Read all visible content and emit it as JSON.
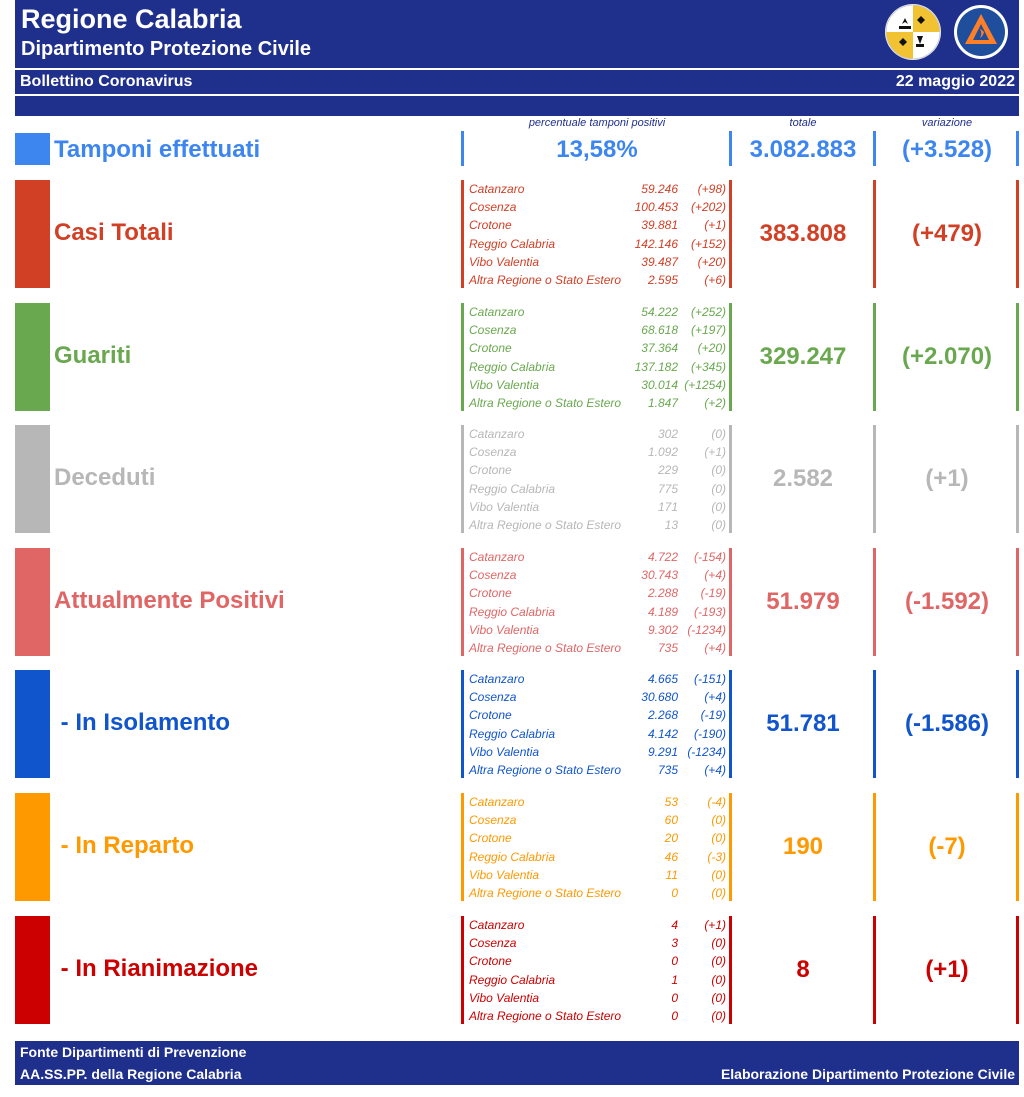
{
  "header": {
    "title": "Regione Calabria",
    "subtitle": "Dipartimento Protezione Civile",
    "bulletin": "Bollettino Coronavirus",
    "date": "22 maggio 2022",
    "logo_left": "regione-calabria-crest",
    "logo_right": "protezione-civile-regione-calabria-logo"
  },
  "columns": {
    "percent": "percentuale tamponi positivi",
    "total": "totale",
    "variation": "variazione"
  },
  "tamponi": {
    "label": "Tamponi effettuati",
    "percent": "13,58%",
    "total": "3.082.883",
    "variation": "(+3.528)",
    "color": "#3d86f0"
  },
  "sections": [
    {
      "id": "casi-totali",
      "label": "Casi Totali",
      "color": "#d13f25",
      "total": "383.808",
      "variation": "(+479)",
      "rows": [
        {
          "name": "Catanzaro",
          "value": "59.246",
          "delta": "(+98)"
        },
        {
          "name": "Cosenza",
          "value": "100.453",
          "delta": "(+202)"
        },
        {
          "name": "Crotone",
          "value": "39.881",
          "delta": "(+1)"
        },
        {
          "name": "Reggio Calabria",
          "value": "142.146",
          "delta": "(+152)"
        },
        {
          "name": "Vibo Valentia",
          "value": "39.487",
          "delta": "(+20)"
        },
        {
          "name": "Altra Regione o Stato Estero",
          "value": "2.595",
          "delta": "(+6)"
        }
      ]
    },
    {
      "id": "guariti",
      "label": "Guariti",
      "color": "#6aa84f",
      "total": "329.247",
      "variation": "(+2.070)",
      "rows": [
        {
          "name": "Catanzaro",
          "value": "54.222",
          "delta": "(+252)"
        },
        {
          "name": "Cosenza",
          "value": "68.618",
          "delta": "(+197)"
        },
        {
          "name": "Crotone",
          "value": "37.364",
          "delta": "(+20)"
        },
        {
          "name": "Reggio Calabria",
          "value": "137.182",
          "delta": "(+345)"
        },
        {
          "name": "Vibo Valentia",
          "value": "30.014",
          "delta": "(+1254)"
        },
        {
          "name": "Altra Regione o Stato Estero",
          "value": "1.847",
          "delta": "(+2)"
        }
      ]
    },
    {
      "id": "deceduti",
      "label": "Deceduti",
      "color": "#b7b7b7",
      "total": "2.582",
      "variation": "(+1)",
      "rows": [
        {
          "name": "Catanzaro",
          "value": "302",
          "delta": "(0)"
        },
        {
          "name": "Cosenza",
          "value": "1.092",
          "delta": "(+1)"
        },
        {
          "name": "Crotone",
          "value": "229",
          "delta": "(0)"
        },
        {
          "name": "Reggio Calabria",
          "value": "775",
          "delta": "(0)"
        },
        {
          "name": "Vibo Valentia",
          "value": "171",
          "delta": "(0)"
        },
        {
          "name": "Altra Regione o Stato Estero",
          "value": "13",
          "delta": "(0)"
        }
      ]
    },
    {
      "id": "attualmente-positivi",
      "label": "Attualmente Positivi",
      "color": "#e06666",
      "total": "51.979",
      "variation": "(-1.592)",
      "rows": [
        {
          "name": "Catanzaro",
          "value": "4.722",
          "delta": "(-154)"
        },
        {
          "name": "Cosenza",
          "value": "30.743",
          "delta": "(+4)"
        },
        {
          "name": "Crotone",
          "value": "2.288",
          "delta": "(-19)"
        },
        {
          "name": "Reggio Calabria",
          "value": "4.189",
          "delta": "(-193)"
        },
        {
          "name": "Vibo Valentia",
          "value": "9.302",
          "delta": "(-1234)"
        },
        {
          "name": "Altra Regione o Stato Estero",
          "value": "735",
          "delta": "(+4)"
        }
      ]
    },
    {
      "id": "in-isolamento",
      "label": " - In Isolamento",
      "color": "#1155cc",
      "total": "51.781",
      "variation": "(-1.586)",
      "rows": [
        {
          "name": "Catanzaro",
          "value": "4.665",
          "delta": "(-151)"
        },
        {
          "name": "Cosenza",
          "value": "30.680",
          "delta": "(+4)"
        },
        {
          "name": "Crotone",
          "value": "2.268",
          "delta": "(-19)"
        },
        {
          "name": "Reggio Calabria",
          "value": "4.142",
          "delta": "(-190)"
        },
        {
          "name": "Vibo Valentia",
          "value": "9.291",
          "delta": "(-1234)"
        },
        {
          "name": "Altra Regione o Stato Estero",
          "value": "735",
          "delta": "(+4)"
        }
      ]
    },
    {
      "id": "in-reparto",
      "label": " - In Reparto",
      "color": "#ff9900",
      "total": "190",
      "variation": "(-7)",
      "rows": [
        {
          "name": "Catanzaro",
          "value": "53",
          "delta": "(-4)"
        },
        {
          "name": "Cosenza",
          "value": "60",
          "delta": "(0)"
        },
        {
          "name": "Crotone",
          "value": "20",
          "delta": "(0)"
        },
        {
          "name": "Reggio Calabria",
          "value": "46",
          "delta": "(-3)"
        },
        {
          "name": "Vibo Valentia",
          "value": "11",
          "delta": "(0)"
        },
        {
          "name": "Altra Regione o Stato Estero",
          "value": "0",
          "delta": "(0)"
        }
      ]
    },
    {
      "id": "in-rianimazione",
      "label": " - In Rianimazione",
      "color": "#cc0000",
      "total": "8",
      "variation": "(+1)",
      "rows": [
        {
          "name": "Catanzaro",
          "value": "4",
          "delta": "(+1)"
        },
        {
          "name": "Cosenza",
          "value": "3",
          "delta": "(0)"
        },
        {
          "name": "Crotone",
          "value": "0",
          "delta": "(0)"
        },
        {
          "name": "Reggio Calabria",
          "value": "1",
          "delta": "(0)"
        },
        {
          "name": "Vibo Valentia",
          "value": "0",
          "delta": "(0)"
        },
        {
          "name": "Altra Regione o Stato Estero",
          "value": "0",
          "delta": "(0)"
        }
      ]
    }
  ],
  "footer": {
    "source_line1": "Fonte Dipartimenti di Prevenzione",
    "source_line2": "AA.SS.PP.  della Regione Calabria",
    "credit": "Elaborazione Dipartimento Protezione Civile"
  }
}
